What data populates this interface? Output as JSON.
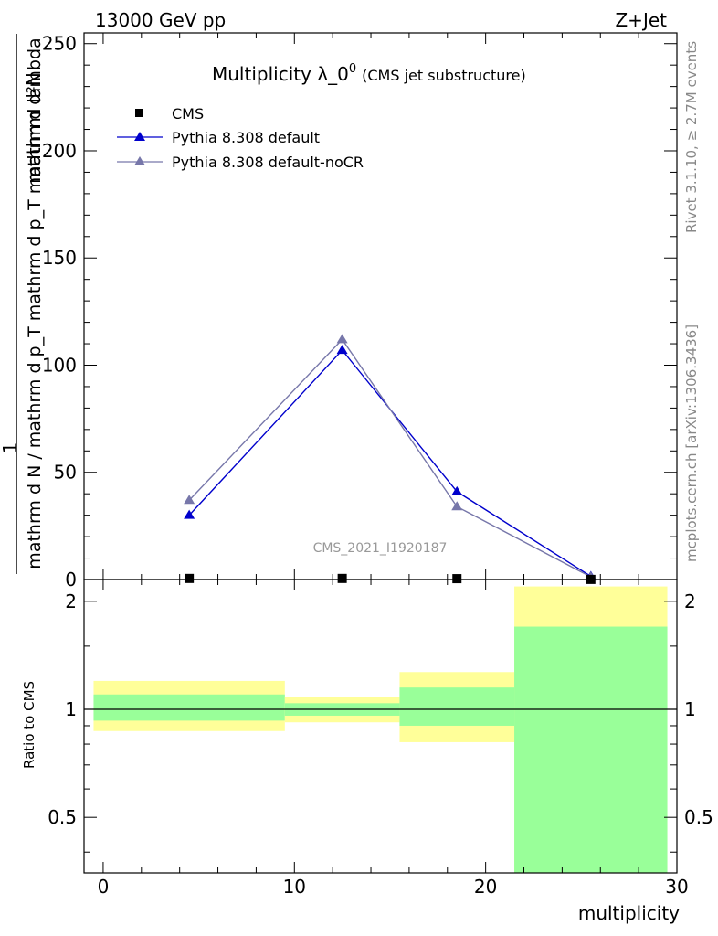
{
  "header": {
    "energy_label": "13000 GeV pp",
    "process_label": "Z+Jet"
  },
  "side_labels": {
    "rivet": "Rivet 3.1.10, ≥ 2.7M events",
    "mcplots": "mcplots.cern.ch [arXiv:1306.3436]"
  },
  "chart_data": {
    "type": "line",
    "title": "Multiplicity λ_0",
    "title_superscript": "0",
    "title_suffix": "(CMS jet substructure)",
    "watermark": "CMS_2021_I1920187",
    "xlabel": "multiplicity",
    "ylabel_numerator": "mathrm d²N",
    "ylabel_denominator": "mathrm d N / mathrm d p_T mathrm d p_T mathrm d lambda",
    "ylabel_prefix": "1",
    "ratio_ylabel": "Ratio to CMS",
    "xlim": [
      -1,
      30
    ],
    "ylim": [
      0,
      255
    ],
    "ratio_ylim": [
      0.35,
      2.3
    ],
    "ratio_scale": "log",
    "x_ticks": [
      "0",
      "10",
      "20",
      "30"
    ],
    "y_ticks": [
      "0",
      "50",
      "100",
      "150",
      "200",
      "250"
    ],
    "ratio_ticks": [
      "0.5",
      "1",
      "2"
    ],
    "legend_position": "top-left",
    "bins": [
      [
        -0.5,
        9.5
      ],
      [
        9.5,
        15.5
      ],
      [
        15.5,
        21.5
      ],
      [
        21.5,
        29.5
      ]
    ],
    "data": {
      "name": "CMS",
      "color": "#000000",
      "x": [
        4.5,
        12.5,
        18.5,
        25.5
      ],
      "values": [
        0.5,
        0.5,
        0.4,
        0.05
      ]
    },
    "series": [
      {
        "name": "Pythia 8.308 default",
        "color": "#0000cc",
        "x": [
          4.5,
          12.5,
          18.5,
          25.5
        ],
        "values": [
          30,
          107,
          41,
          1.5
        ]
      },
      {
        "name": "Pythia 8.308 default-noCR",
        "color": "#7777aa",
        "x": [
          4.5,
          12.5,
          18.5,
          25.5
        ],
        "values": [
          37,
          112,
          34,
          1.2
        ]
      }
    ],
    "ratio_bands": [
      {
        "lo": 0.87,
        "hi": 1.2,
        "stat_lo": 0.93,
        "stat_hi": 1.1
      },
      {
        "lo": 0.92,
        "hi": 1.08,
        "stat_lo": 0.96,
        "stat_hi": 1.04
      },
      {
        "lo": 0.81,
        "hi": 1.27,
        "stat_lo": 0.9,
        "stat_hi": 1.15
      },
      {
        "lo": 0.2,
        "hi": 2.2,
        "stat_lo": 0.2,
        "stat_hi": 1.7
      }
    ],
    "band_colors": {
      "total": "#ffff99",
      "stat": "#99ff99"
    }
  }
}
